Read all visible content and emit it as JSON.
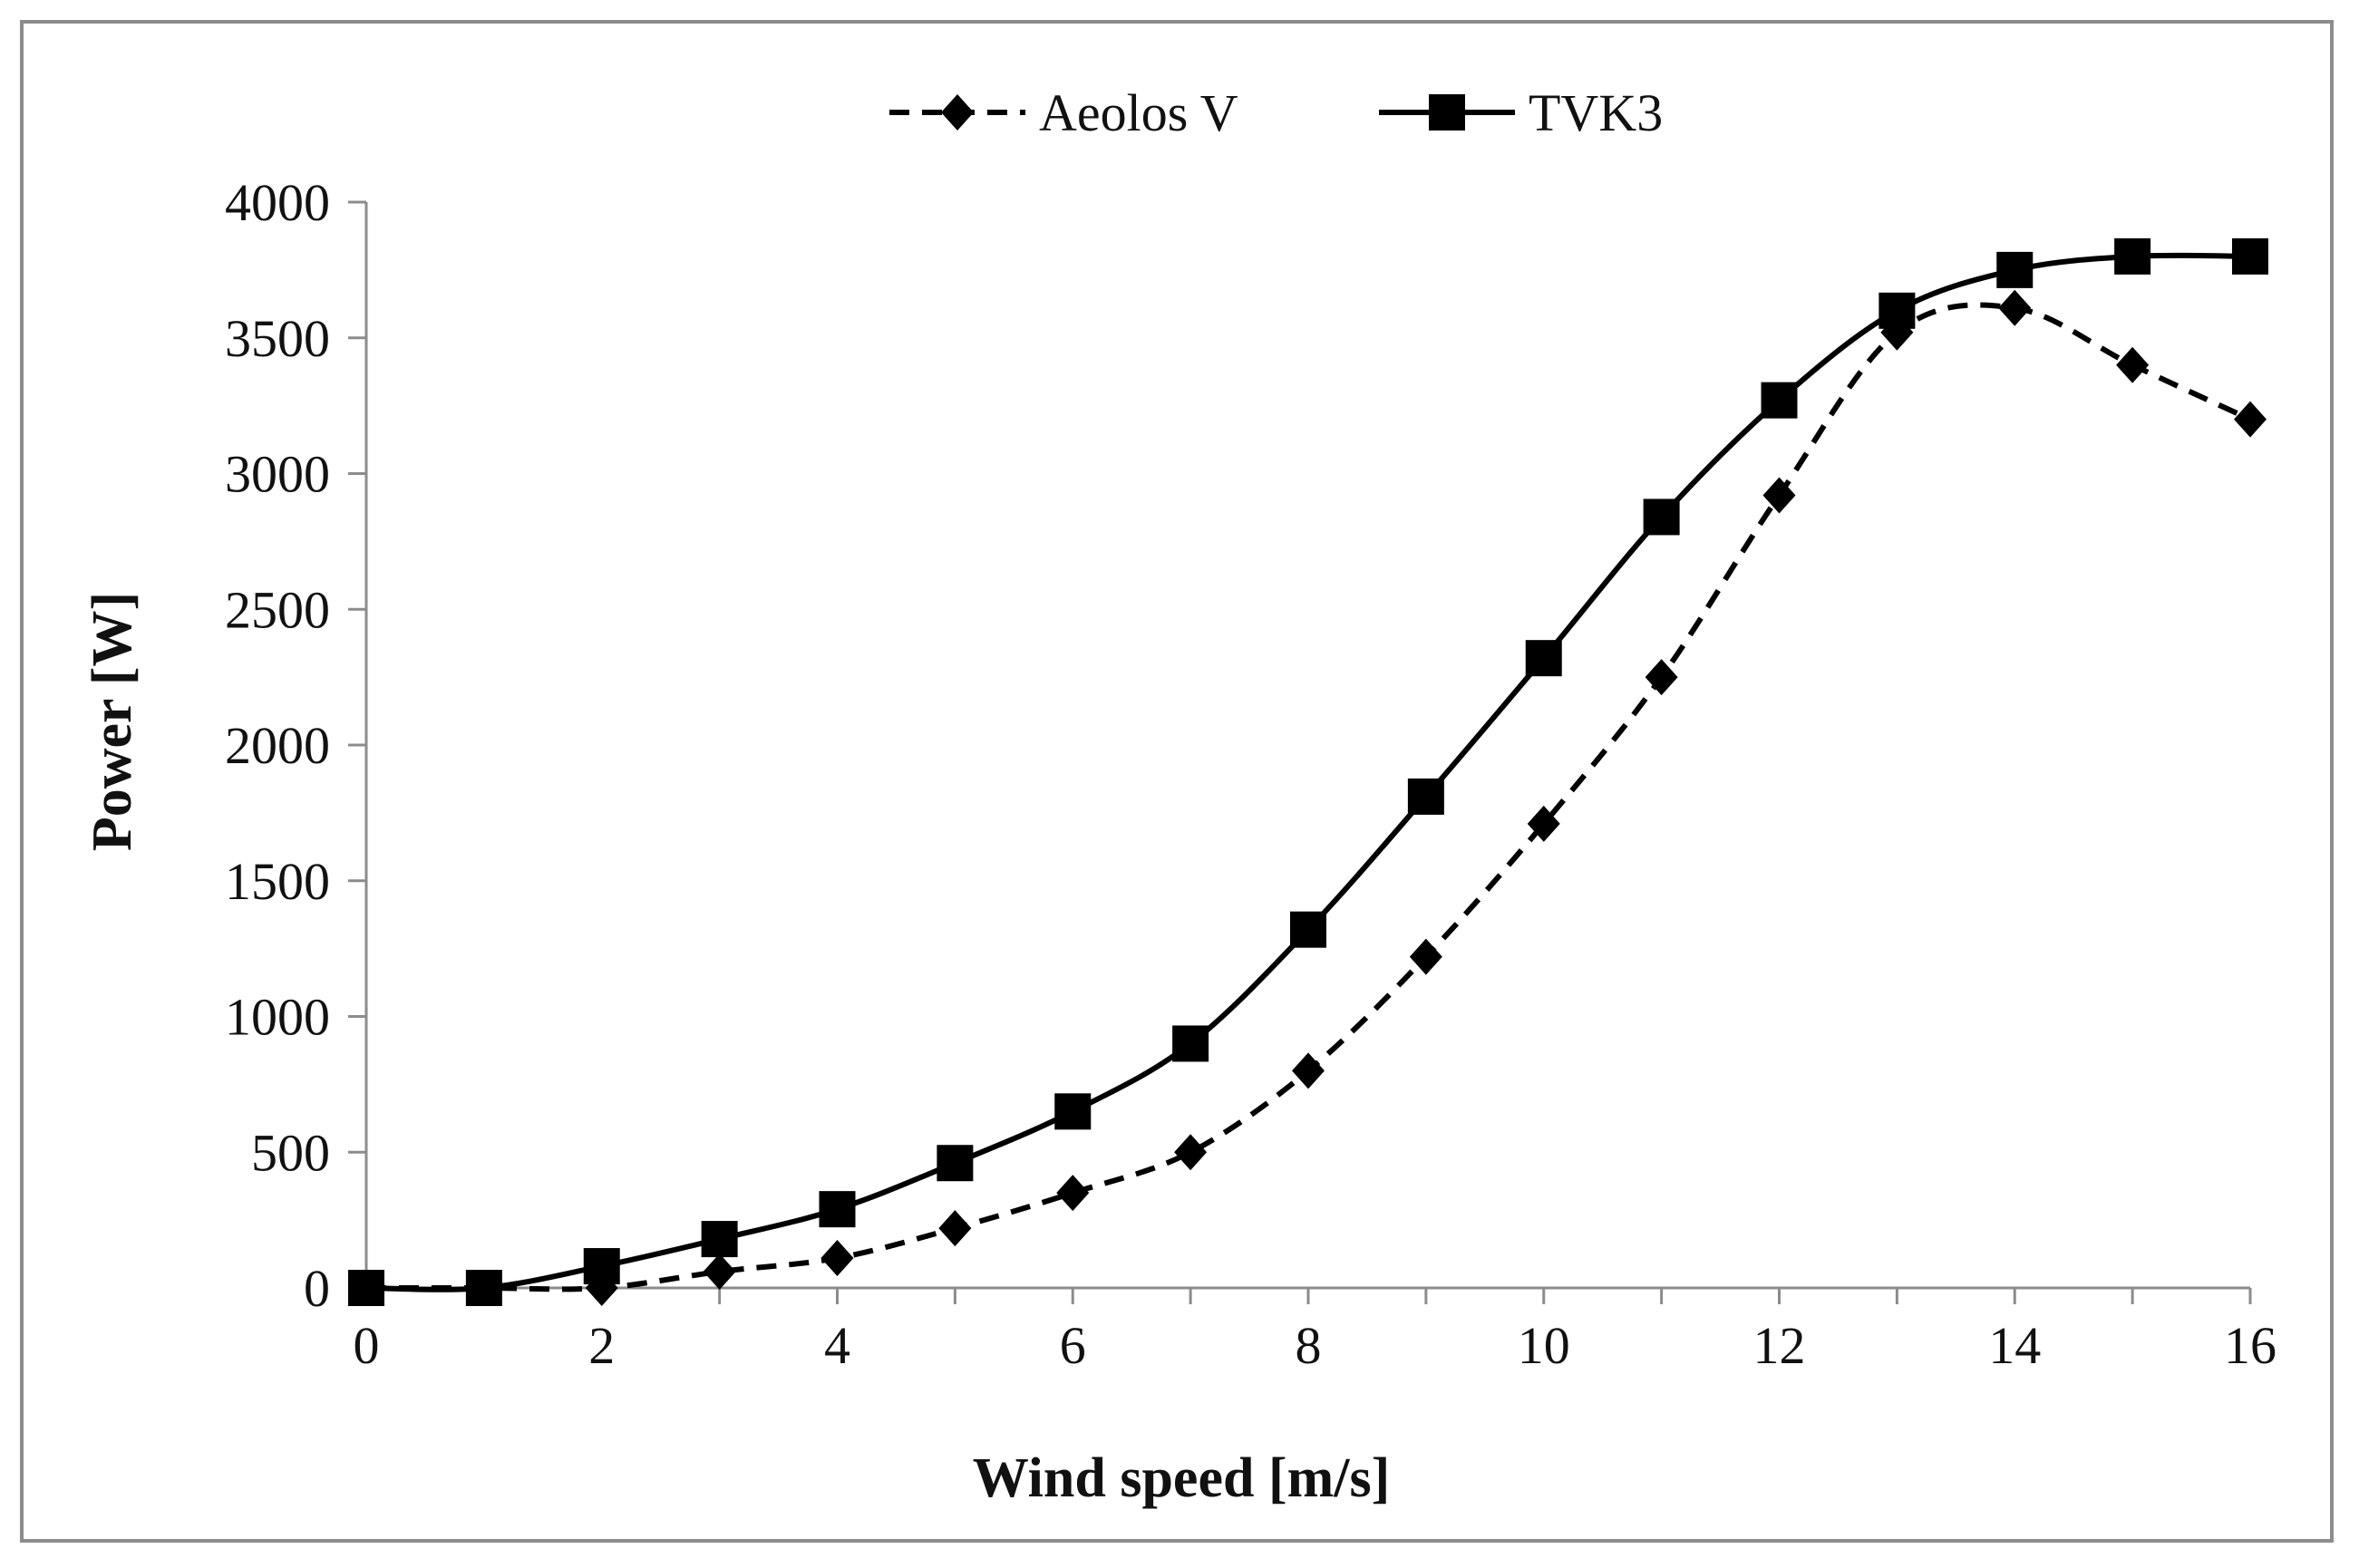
{
  "chart_data": {
    "type": "line",
    "title": "",
    "xlabel": "Wind speed [m/s]",
    "ylabel": "Power [W]",
    "xlim": [
      0,
      16
    ],
    "ylim": [
      0,
      4000
    ],
    "x_ticks": [
      "0",
      "2",
      "4",
      "6",
      "8",
      "10",
      "12",
      "14",
      "16"
    ],
    "y_ticks": [
      "0",
      "500",
      "1000",
      "1500",
      "2000",
      "2500",
      "3000",
      "3500",
      "4000"
    ],
    "grid": false,
    "legend_position": "top-center",
    "x": [
      0,
      1,
      2,
      3,
      4,
      5,
      6,
      7,
      8,
      9,
      10,
      11,
      12,
      13,
      14,
      15,
      16
    ],
    "series": [
      {
        "name": "Aeolos V",
        "line_style": "dashed",
        "marker": "diamond",
        "color": "#000000",
        "values": [
          0,
          0,
          0,
          60,
          110,
          220,
          350,
          500,
          800,
          1220,
          1710,
          2250,
          2920,
          3520,
          3610,
          3400,
          3200
        ]
      },
      {
        "name": "TVK3",
        "line_style": "solid",
        "marker": "square",
        "color": "#000000",
        "values": [
          0,
          0,
          80,
          180,
          290,
          460,
          650,
          900,
          1320,
          1810,
          2320,
          2840,
          3270,
          3600,
          3750,
          3800,
          3800
        ]
      }
    ]
  }
}
